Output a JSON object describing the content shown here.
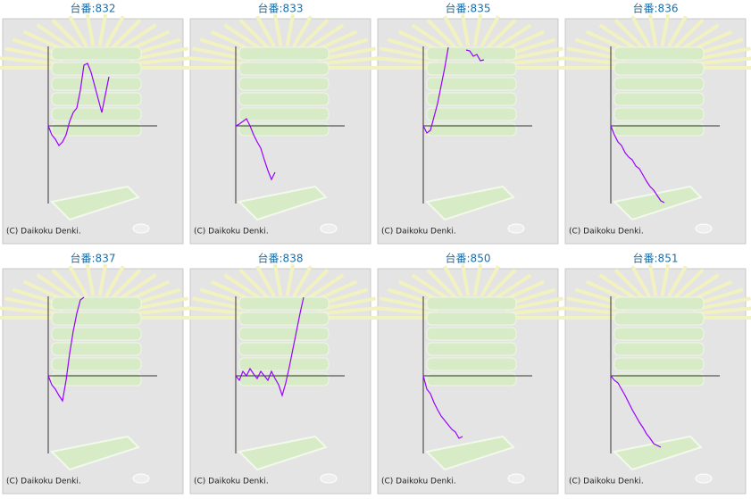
{
  "chart_data": [
    {
      "type": "line",
      "title": "台番:832",
      "credit": "(C) Daikoku Denki.",
      "color": "#9900ff",
      "xlim": [
        0,
        30
      ],
      "ylim": [
        -87,
        89
      ],
      "values": [
        0,
        -10,
        -15,
        -22,
        -18,
        -10,
        5,
        15,
        20,
        40,
        68,
        70,
        60,
        45,
        30,
        15,
        35,
        55
      ]
    },
    {
      "type": "line",
      "title": "台番:833",
      "credit": "(C) Daikoku Denki.",
      "color": "#9900ff",
      "xlim": [
        0,
        30
      ],
      "ylim": [
        -87,
        89
      ],
      "values": [
        0,
        2,
        5,
        8,
        0,
        -10,
        -18,
        -25,
        -38,
        -50,
        -60,
        -52
      ]
    },
    {
      "type": "line",
      "title": "台番:835",
      "credit": "(C) Daikoku Denki.",
      "color": "#9900ff",
      "xlim": [
        0,
        30
      ],
      "ylim": [
        -87,
        89
      ],
      "values": [
        0,
        -8,
        -5,
        10,
        25,
        45,
        65,
        88,
        null,
        null,
        null,
        null,
        85,
        84,
        78,
        80,
        73,
        74
      ]
    },
    {
      "type": "line",
      "title": "台番:836",
      "credit": "(C) Daikoku Denki.",
      "color": "#9900ff",
      "xlim": [
        0,
        30
      ],
      "ylim": [
        -87,
        89
      ],
      "values": [
        0,
        -10,
        -18,
        -22,
        -30,
        -35,
        -38,
        -45,
        -48,
        -55,
        -62,
        -68,
        -72,
        -78,
        -84,
        -86
      ]
    },
    {
      "type": "line",
      "title": "台番:837",
      "credit": "(C) Daikoku Denki.",
      "color": "#9900ff",
      "xlim": [
        0,
        30
      ],
      "ylim": [
        -87,
        89
      ],
      "values": [
        0,
        -10,
        -15,
        -22,
        -28,
        -5,
        25,
        50,
        70,
        85,
        88
      ]
    },
    {
      "type": "line",
      "title": "台番:838",
      "credit": "(C) Daikoku Denki.",
      "color": "#9900ff",
      "xlim": [
        0,
        30
      ],
      "ylim": [
        -87,
        89
      ],
      "values": [
        0,
        -5,
        5,
        0,
        8,
        2,
        -3,
        5,
        0,
        -5,
        5,
        -3,
        -10,
        -22,
        -8,
        10,
        30,
        50,
        70,
        88
      ]
    },
    {
      "type": "line",
      "title": "台番:850",
      "credit": "(C) Daikoku Denki.",
      "color": "#9900ff",
      "xlim": [
        0,
        30
      ],
      "ylim": [
        -87,
        89
      ],
      "values": [
        0,
        -15,
        -20,
        -30,
        -38,
        -45,
        -50,
        -55,
        -60,
        -63,
        -70,
        -68
      ]
    },
    {
      "type": "line",
      "title": "台番:851",
      "credit": "(C) Daikoku Denki.",
      "color": "#9900ff",
      "xlim": [
        0,
        30
      ],
      "ylim": [
        -87,
        89
      ],
      "values": [
        0,
        -5,
        -8,
        -15,
        -22,
        -30,
        -38,
        -45,
        -52,
        -58,
        -65,
        -70,
        -76,
        -78,
        -80
      ]
    }
  ]
}
